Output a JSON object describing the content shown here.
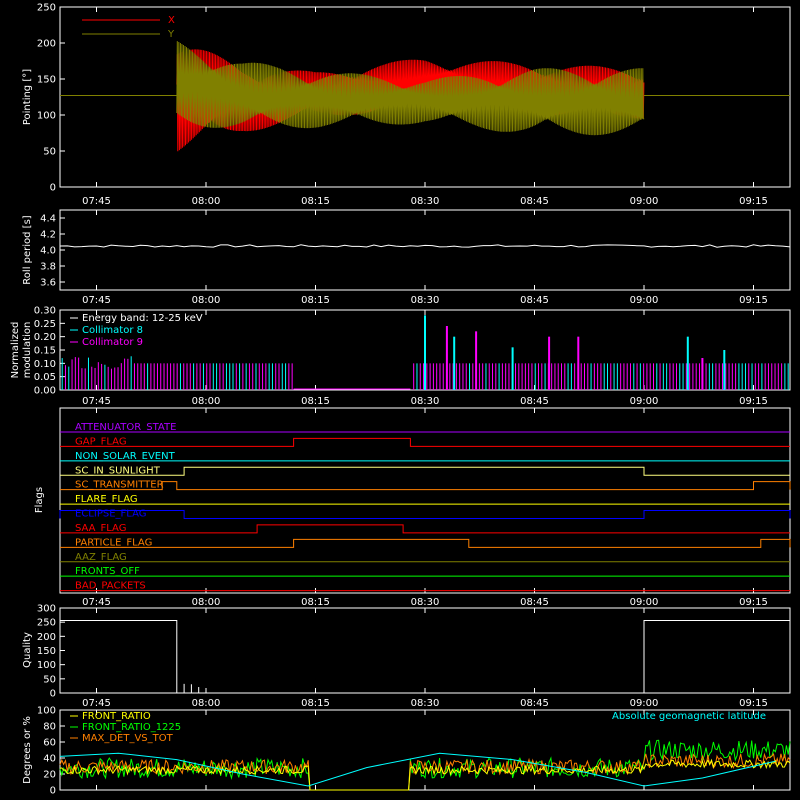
{
  "x_ticks": [
    "07:45",
    "08:00",
    "08:15",
    "08:30",
    "08:45",
    "09:00",
    "09:15"
  ],
  "chart_data": [
    {
      "id": "pointing",
      "type": "line",
      "ylabel": "Pointing [°]",
      "ylim": [
        0,
        250
      ],
      "yticks": [
        "0",
        "50",
        "100",
        "150",
        "200",
        "250"
      ],
      "series": [
        {
          "name": "X",
          "color": "#ff0000",
          "baseline": 127,
          "data_start": "07:56",
          "data_end": "09:00",
          "envelope": [
            [
              "07:56",
              45,
              205
            ],
            [
              "08:05",
              75,
              170
            ],
            [
              "08:15",
              95,
              160
            ],
            [
              "08:30",
              110,
              180
            ],
            [
              "08:45",
              100,
              172
            ],
            [
              "09:00",
              95,
              165
            ]
          ]
        },
        {
          "name": "Y",
          "color": "#808000",
          "baseline": 127,
          "data_start": "07:56",
          "data_end": "09:00",
          "envelope": [
            [
              "07:56",
              85,
              205
            ],
            [
              "08:05",
              80,
              175
            ],
            [
              "08:15",
              82,
              162
            ],
            [
              "08:30",
              88,
              150
            ],
            [
              "08:45",
              72,
              165
            ],
            [
              "09:00",
              72,
              165
            ]
          ]
        }
      ]
    },
    {
      "id": "roll",
      "type": "line",
      "ylabel": "Roll period [s]",
      "ylim": [
        3.5,
        4.5
      ],
      "yticks": [
        "3.6",
        "3.8",
        "4.0",
        "4.2",
        "4.4"
      ],
      "series": [
        {
          "name": "",
          "color": "#ffffff",
          "value": 4.05
        }
      ]
    },
    {
      "id": "modulation",
      "type": "bar",
      "ylabel": "Normalized modulation",
      "ylim": [
        0,
        0.3
      ],
      "yticks": [
        "0.00",
        "0.05",
        "0.10",
        "0.15",
        "0.20",
        "0.25",
        "0.30"
      ],
      "legend_title": "Energy band: 12-25 keV",
      "series": [
        {
          "name": "Collimator 8",
          "color": "#00ffff",
          "spikes": [
            [
              "08:30",
              0.28
            ],
            [
              "08:34",
              0.2
            ],
            [
              "08:42",
              0.16
            ],
            [
              "09:06",
              0.2
            ],
            [
              "09:11",
              0.15
            ]
          ]
        },
        {
          "name": "Collimator 9",
          "color": "#ff00ff",
          "spikes": [
            [
              "08:33",
              0.24
            ],
            [
              "08:37",
              0.22
            ],
            [
              "08:47",
              0.2
            ],
            [
              "08:51",
              0.2
            ],
            [
              "09:08",
              0.12
            ]
          ]
        }
      ],
      "gap": [
        "08:12",
        "08:28"
      ]
    },
    {
      "id": "flags",
      "type": "line",
      "ylabel": "Flags",
      "series": [
        {
          "name": "ATTENUATOR_STATE",
          "color": "#aa00ff",
          "steps": []
        },
        {
          "name": "GAP_FLAG",
          "color": "#ff0000",
          "steps": [
            [
              "08:12",
              "08:28"
            ]
          ]
        },
        {
          "name": "NON_SOLAR_EVENT",
          "color": "#00ffff",
          "steps": []
        },
        {
          "name": "SC_IN_SUNLIGHT",
          "color": "#ffff80",
          "steps": [
            [
              "07:57",
              "09:00"
            ]
          ]
        },
        {
          "name": "SC_TRANSMITTER",
          "color": "#ff8000",
          "steps": [
            [
              "07:54",
              "07:56"
            ],
            [
              "09:15",
              "09:20"
            ]
          ]
        },
        {
          "name": "FLARE_FLAG",
          "color": "#ffff00",
          "steps": []
        },
        {
          "name": "ECLIPSE_FLAG",
          "color": "#0000ff",
          "steps": [
            [
              "07:40",
              "07:57"
            ],
            [
              "09:00",
              "09:20"
            ]
          ]
        },
        {
          "name": "SAA_FLAG",
          "color": "#ff0000",
          "steps": [
            [
              "08:07",
              "08:27"
            ]
          ]
        },
        {
          "name": "PARTICLE_FLAG",
          "color": "#ff8000",
          "steps": [
            [
              "08:12",
              "08:36"
            ],
            [
              "09:16",
              "09:20"
            ]
          ]
        },
        {
          "name": "AAZ_FLAG",
          "color": "#808000",
          "steps": []
        },
        {
          "name": "FRONTS_OFF",
          "color": "#00ff00",
          "steps": []
        },
        {
          "name": "BAD_PACKETS",
          "color": "#ff0000",
          "steps": []
        }
      ]
    },
    {
      "id": "quality",
      "type": "line",
      "ylabel": "Quality",
      "ylim": [
        0,
        300
      ],
      "yticks": [
        "0",
        "50",
        "100",
        "150",
        "200",
        "250",
        "300"
      ],
      "series": [
        {
          "name": "",
          "color": "#ffffff",
          "segments": [
            [
              "07:40",
              "07:56",
              256
            ],
            [
              "07:56",
              "09:00",
              0
            ],
            [
              "09:00",
              "09:20",
              256
            ]
          ]
        }
      ]
    },
    {
      "id": "ratios",
      "type": "line",
      "ylabel": "Degrees or %",
      "ylim": [
        0,
        100
      ],
      "yticks": [
        "0",
        "20",
        "40",
        "60",
        "80",
        "100"
      ],
      "series": [
        {
          "name": "FRONT_RATIO",
          "color": "#ffff00"
        },
        {
          "name": "FRONT_RATIO_1225",
          "color": "#00ff00"
        },
        {
          "name": "MAX_DET_VS_TOT",
          "color": "#ff8000"
        },
        {
          "name": "Absolute geomagnetic latitude",
          "color": "#00ffff",
          "points": [
            [
              "07:40",
              42
            ],
            [
              "07:48",
              46
            ],
            [
              "07:56",
              38
            ],
            [
              "08:05",
              20
            ],
            [
              "08:14",
              5
            ],
            [
              "08:22",
              28
            ],
            [
              "08:32",
              46
            ],
            [
              "08:42",
              38
            ],
            [
              "08:52",
              22
            ],
            [
              "09:00",
              5
            ],
            [
              "09:08",
              15
            ],
            [
              "09:18",
              36
            ]
          ]
        }
      ]
    }
  ]
}
